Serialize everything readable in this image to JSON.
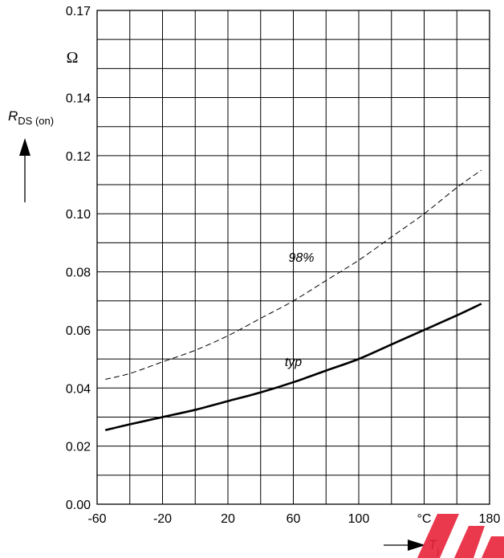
{
  "chart_data": {
    "type": "line",
    "x_unit": "°C",
    "y_unit": "Ω",
    "y_label_symbol": "R",
    "y_label_subscript": "DS (on)",
    "x_label_symbol": "T",
    "x_label_subscript": "j",
    "xlim": [
      -60,
      180
    ],
    "ylim": [
      0.0,
      0.17
    ],
    "x_ticks": [
      "-60",
      "-20",
      "20",
      "60",
      "100",
      "°C",
      "180"
    ],
    "y_ticks": [
      "0.00",
      "0.02",
      "0.04",
      "0.06",
      "0.08",
      "0.10",
      "0.12",
      "0.14",
      "0.17"
    ],
    "grid": true,
    "series": [
      {
        "name": "98%",
        "style": "dashed",
        "x": [
          -55,
          -40,
          -20,
          0,
          20,
          40,
          60,
          80,
          100,
          120,
          140,
          160,
          175
        ],
        "y": [
          0.043,
          0.045,
          0.049,
          0.053,
          0.058,
          0.064,
          0.07,
          0.077,
          0.084,
          0.092,
          0.1,
          0.109,
          0.115
        ]
      },
      {
        "name": "typ",
        "style": "solid",
        "x": [
          -55,
          -40,
          -20,
          0,
          20,
          40,
          60,
          80,
          100,
          120,
          140,
          160,
          175
        ],
        "y": [
          0.0255,
          0.0275,
          0.03,
          0.0325,
          0.0355,
          0.0385,
          0.042,
          0.046,
          0.05,
          0.055,
          0.06,
          0.065,
          0.069
        ]
      }
    ]
  },
  "colors": {
    "axis": "#000000",
    "grid": "#000000",
    "curve": "#000000",
    "watermark": "#e8243a"
  }
}
